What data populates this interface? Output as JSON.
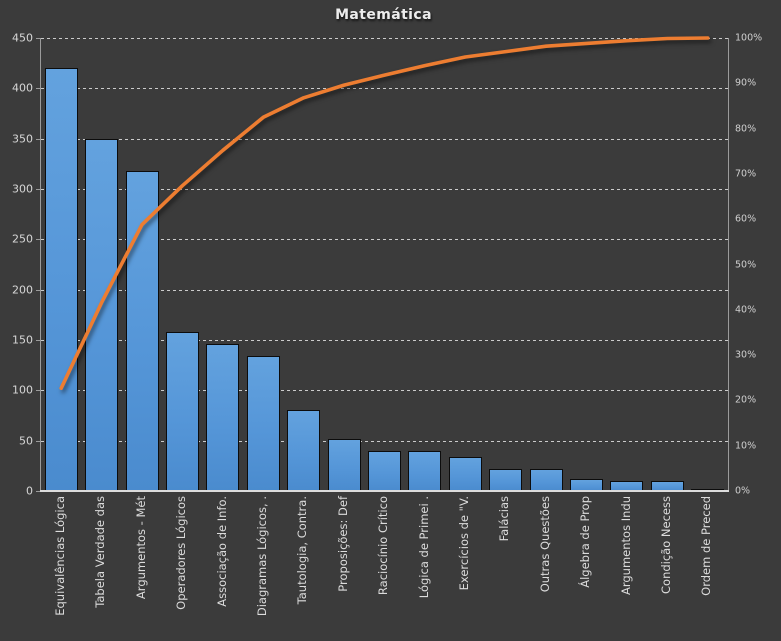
{
  "title": "Matemática",
  "axes": {
    "left_ticks": [
      "450",
      "400",
      "350",
      "300",
      "250",
      "200",
      "150",
      "100",
      "50",
      "0"
    ],
    "right_ticks": [
      "100%",
      "90%",
      "80%",
      "70%",
      "60%",
      "50%",
      "40%",
      "30%",
      "20%",
      "10%",
      "0%"
    ]
  },
  "chart_data": {
    "type": "bar",
    "subtype": "pareto",
    "title": "Matemática",
    "categories": [
      "Equivalências Lógica",
      "Tabela Verdade das",
      "Argumentos - Mét",
      "Operadores Lógicos",
      "Associação de Info.",
      "Diagramas Lógicos, .",
      "Tautologia, Contra.",
      "Proposições: Def",
      "Raciocínio Crítico",
      "Lógica de Primei .",
      "Exercícios de \"V.",
      "Falácias",
      "Outras Questões",
      "Álgebra de Prop",
      "Argumentos Indu",
      "Condição Necess",
      "Ordem de Preced"
    ],
    "series": [
      {
        "name": "bars",
        "type": "bar",
        "axis": "left",
        "values": [
          420,
          350,
          318,
          158,
          146,
          134,
          80,
          52,
          40,
          40,
          34,
          22,
          22,
          12,
          10,
          10,
          2
        ]
      },
      {
        "name": "cumulative-line",
        "type": "line",
        "axis": "right",
        "values": [
          22.7,
          41.6,
          58.8,
          67.4,
          75.2,
          82.5,
          86.8,
          89.6,
          91.8,
          93.9,
          95.8,
          97.0,
          98.2,
          98.8,
          99.4,
          99.9,
          100.0
        ]
      }
    ],
    "ylim_left": [
      0,
      450
    ],
    "ylim_right_pct": [
      0,
      100
    ],
    "grid": true,
    "legend": "none",
    "colors": {
      "background": "#3B3B3B",
      "bar_fill": "#5596D8",
      "bar_border": "#0C0C0C",
      "line": "#ED7D31",
      "gridline": "#E4E4E4",
      "axis_line": "#9B9B9B",
      "axis_text": "#D6D6D6",
      "title_text": "#EDEDED"
    }
  }
}
